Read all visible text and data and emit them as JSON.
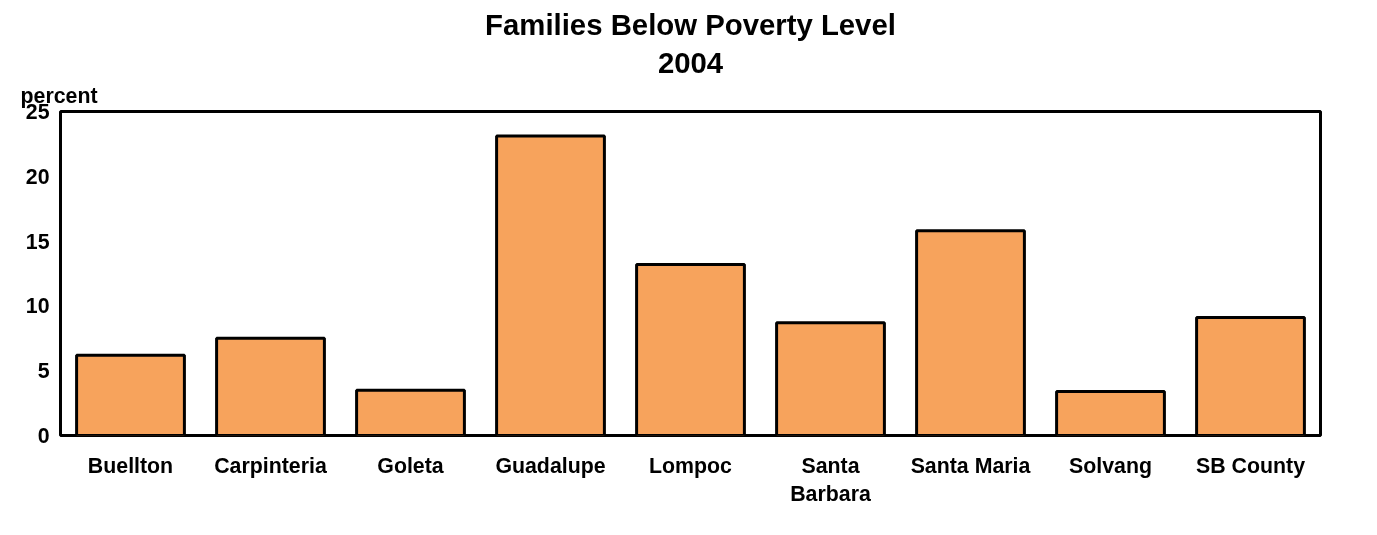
{
  "chart_data": {
    "type": "bar",
    "title": "Families Below Poverty Level",
    "subtitle": "2004",
    "ylabel": "percent",
    "categories": [
      "Buellton",
      "Carpinteria",
      "Goleta",
      "Guadalupe",
      "Lompoc",
      "Santa Barbara",
      "Santa Maria",
      "Solvang",
      "SB County"
    ],
    "values": [
      6.2,
      7.5,
      3.5,
      23.1,
      13.2,
      8.7,
      15.8,
      3.4,
      9.1
    ],
    "color": "#f7a35c",
    "ylim": [
      0,
      25
    ],
    "yticks": [
      0,
      5,
      10,
      15,
      20,
      25
    ],
    "grid": false
  }
}
